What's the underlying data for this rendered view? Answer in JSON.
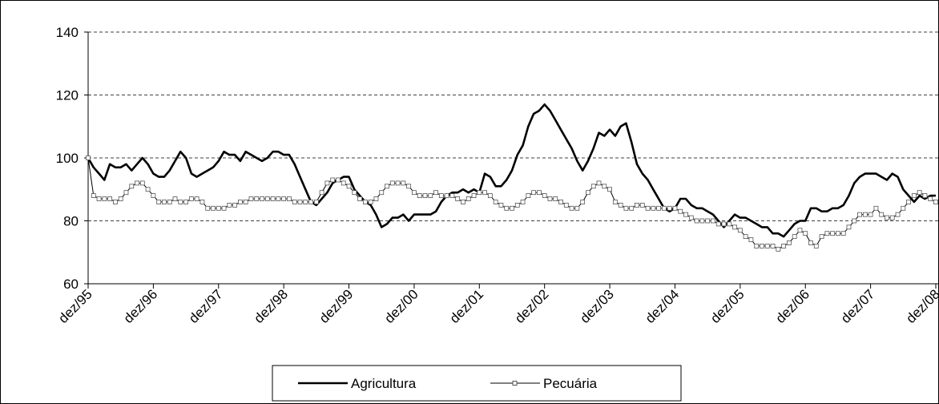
{
  "chart_data": {
    "type": "line",
    "categories": [
      "dez/95",
      null,
      null,
      null,
      null,
      null,
      null,
      null,
      null,
      null,
      null,
      null,
      "dez/96",
      null,
      null,
      null,
      null,
      null,
      null,
      null,
      null,
      null,
      null,
      null,
      "dez/97",
      null,
      null,
      null,
      null,
      null,
      null,
      null,
      null,
      null,
      null,
      null,
      "dez/98",
      null,
      null,
      null,
      null,
      null,
      null,
      null,
      null,
      null,
      null,
      null,
      "dez/99",
      null,
      null,
      null,
      null,
      null,
      null,
      null,
      null,
      null,
      null,
      null,
      "dez/00",
      null,
      null,
      null,
      null,
      null,
      null,
      null,
      null,
      null,
      null,
      null,
      "dez/01",
      null,
      null,
      null,
      null,
      null,
      null,
      null,
      null,
      null,
      null,
      null,
      "dez/02",
      null,
      null,
      null,
      null,
      null,
      null,
      null,
      null,
      null,
      null,
      null,
      "dez/03",
      null,
      null,
      null,
      null,
      null,
      null,
      null,
      null,
      null,
      null,
      null,
      "dez/04",
      null,
      null,
      null,
      null,
      null,
      null,
      null,
      null,
      null,
      null,
      null,
      "dez/05",
      null,
      null,
      null,
      null,
      null,
      null,
      null,
      null,
      null,
      null,
      null,
      "dez/06",
      null,
      null,
      null,
      null,
      null,
      null,
      null,
      null,
      null,
      null,
      null,
      "dez/07",
      null,
      null,
      null,
      null,
      null,
      null,
      null,
      null,
      null,
      null,
      null,
      "dez/08"
    ],
    "series": [
      {
        "name": "Agricultura",
        "color": "#000000",
        "values": [
          100,
          97,
          95,
          93,
          98,
          97,
          97,
          98,
          96,
          98,
          100,
          98,
          95,
          94,
          94,
          96,
          99,
          102,
          100,
          95,
          94,
          95,
          96,
          97,
          99,
          102,
          101,
          101,
          99,
          102,
          101,
          100,
          99,
          100,
          102,
          102,
          101,
          101,
          98,
          94,
          90,
          86,
          85,
          87,
          89,
          92,
          93,
          94,
          94,
          90,
          88,
          86,
          85,
          82,
          78,
          79,
          81,
          81,
          82,
          80,
          82,
          82,
          82,
          82,
          83,
          86,
          88,
          89,
          89,
          90,
          89,
          90,
          89,
          95,
          94,
          91,
          91,
          93,
          96,
          101,
          104,
          110,
          114,
          115,
          117,
          115,
          112,
          109,
          106,
          103,
          99,
          96,
          99,
          103,
          108,
          107,
          109,
          107,
          110,
          111,
          105,
          98,
          95,
          93,
          90,
          87,
          84,
          83,
          84,
          87,
          87,
          85,
          84,
          84,
          83,
          82,
          80,
          78,
          80,
          82,
          81,
          81,
          80,
          79,
          78,
          78,
          76,
          76,
          75,
          77,
          79,
          80,
          80,
          84,
          84,
          83,
          83,
          84,
          84,
          85,
          88,
          92,
          94,
          95,
          95,
          95,
          94,
          93,
          95,
          94,
          90,
          88,
          86,
          88,
          87,
          88,
          88
        ]
      },
      {
        "name": "Pecuária",
        "color": "#000000",
        "values": [
          100,
          88,
          87,
          87,
          87,
          86,
          87,
          89,
          91,
          92,
          92,
          90,
          88,
          86,
          86,
          86,
          87,
          86,
          86,
          87,
          87,
          86,
          84,
          84,
          84,
          84,
          85,
          85,
          86,
          86,
          87,
          87,
          87,
          87,
          87,
          87,
          87,
          87,
          86,
          86,
          86,
          86,
          86,
          89,
          92,
          93,
          93,
          92,
          91,
          89,
          87,
          86,
          86,
          87,
          89,
          91,
          92,
          92,
          92,
          91,
          89,
          88,
          88,
          88,
          89,
          88,
          88,
          88,
          87,
          86,
          87,
          88,
          89,
          89,
          88,
          86,
          85,
          84,
          84,
          85,
          86,
          88,
          89,
          89,
          88,
          87,
          87,
          86,
          85,
          84,
          84,
          86,
          89,
          91,
          92,
          91,
          90,
          86,
          85,
          84,
          84,
          85,
          85,
          84,
          84,
          84,
          84,
          84,
          84,
          83,
          82,
          81,
          80,
          80,
          80,
          80,
          79,
          79,
          79,
          78,
          77,
          75,
          74,
          72,
          72,
          72,
          72,
          71,
          72,
          73,
          75,
          77,
          76,
          73,
          72,
          75,
          76,
          76,
          76,
          76,
          78,
          80,
          82,
          82,
          82,
          84,
          82,
          81,
          81,
          82,
          84,
          86,
          88,
          89,
          88,
          87,
          86
        ]
      }
    ],
    "ylim": [
      60,
      140
    ],
    "yticks": [
      60,
      80,
      100,
      120,
      140
    ],
    "grid": true
  }
}
